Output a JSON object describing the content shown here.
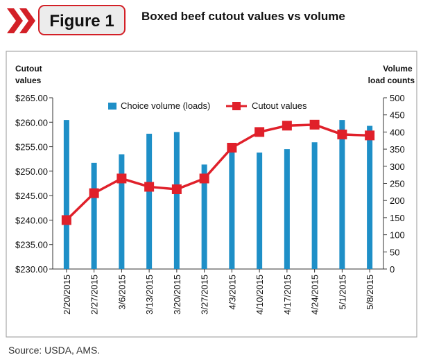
{
  "header": {
    "badge": "Figure 1",
    "title": "Boxed beef cutout values vs volume"
  },
  "source": "Source: USDA, AMS.",
  "colors": {
    "bar": "#1e8fc7",
    "line": "#e0202a",
    "badge_bg": "#ececec",
    "badge_border": "#d32027",
    "chevron": "#d32027",
    "frame": "#a8a8a8"
  },
  "chart_data": {
    "type": "bar",
    "title": "",
    "categories": [
      "2/20/2015",
      "2/27/2015",
      "3/6/2015",
      "3/13/2015",
      "3/20/2015",
      "3/27/2015",
      "4/3/2015",
      "4/10/2015",
      "4/17/2015",
      "4/24/2015",
      "5/1/2015",
      "5/8/2015"
    ],
    "left_axis": {
      "label_lines": [
        "Cutout",
        "values"
      ],
      "range": [
        230,
        265
      ],
      "ticks": [
        230,
        235,
        240,
        245,
        250,
        255,
        260,
        265
      ],
      "tick_labels": [
        "$230.00",
        "$235.00",
        "$240.00",
        "$245.00",
        "$250.00",
        "$255.00",
        "$260.00",
        "$265.00"
      ]
    },
    "right_axis": {
      "label_lines": [
        "Volume",
        "load counts"
      ],
      "range": [
        0,
        500
      ],
      "ticks": [
        0,
        50,
        100,
        150,
        200,
        250,
        300,
        350,
        400,
        450,
        500
      ],
      "tick_labels": [
        "0",
        "50",
        "100",
        "150",
        "200",
        "250",
        "300",
        "350",
        "400",
        "450",
        "500"
      ]
    },
    "series": [
      {
        "name": "Choice volume (loads)",
        "type": "bar",
        "axis": "right",
        "values": [
          435,
          310,
          335,
          395,
          400,
          305,
          345,
          340,
          350,
          370,
          435,
          418
        ]
      },
      {
        "name": "Cutout values",
        "type": "line",
        "axis": "left",
        "values": [
          240.0,
          245.5,
          248.5,
          246.8,
          246.3,
          248.5,
          254.8,
          258.0,
          259.3,
          259.5,
          257.5,
          257.3
        ]
      }
    ],
    "legend_position": "top-center",
    "grid": false
  }
}
